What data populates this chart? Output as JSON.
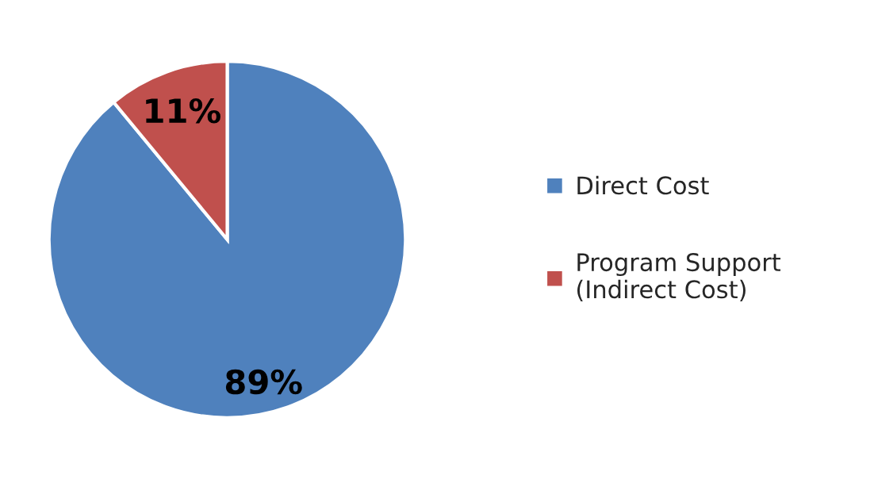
{
  "chart_data": {
    "type": "pie",
    "categories": [
      "Direct Cost",
      "Program Support\n(Indirect Cost)"
    ],
    "values": [
      89,
      11
    ],
    "colors": [
      "#4f81bd",
      "#c0504d"
    ],
    "value_labels": [
      "89%",
      "11%"
    ],
    "legend": "right"
  }
}
